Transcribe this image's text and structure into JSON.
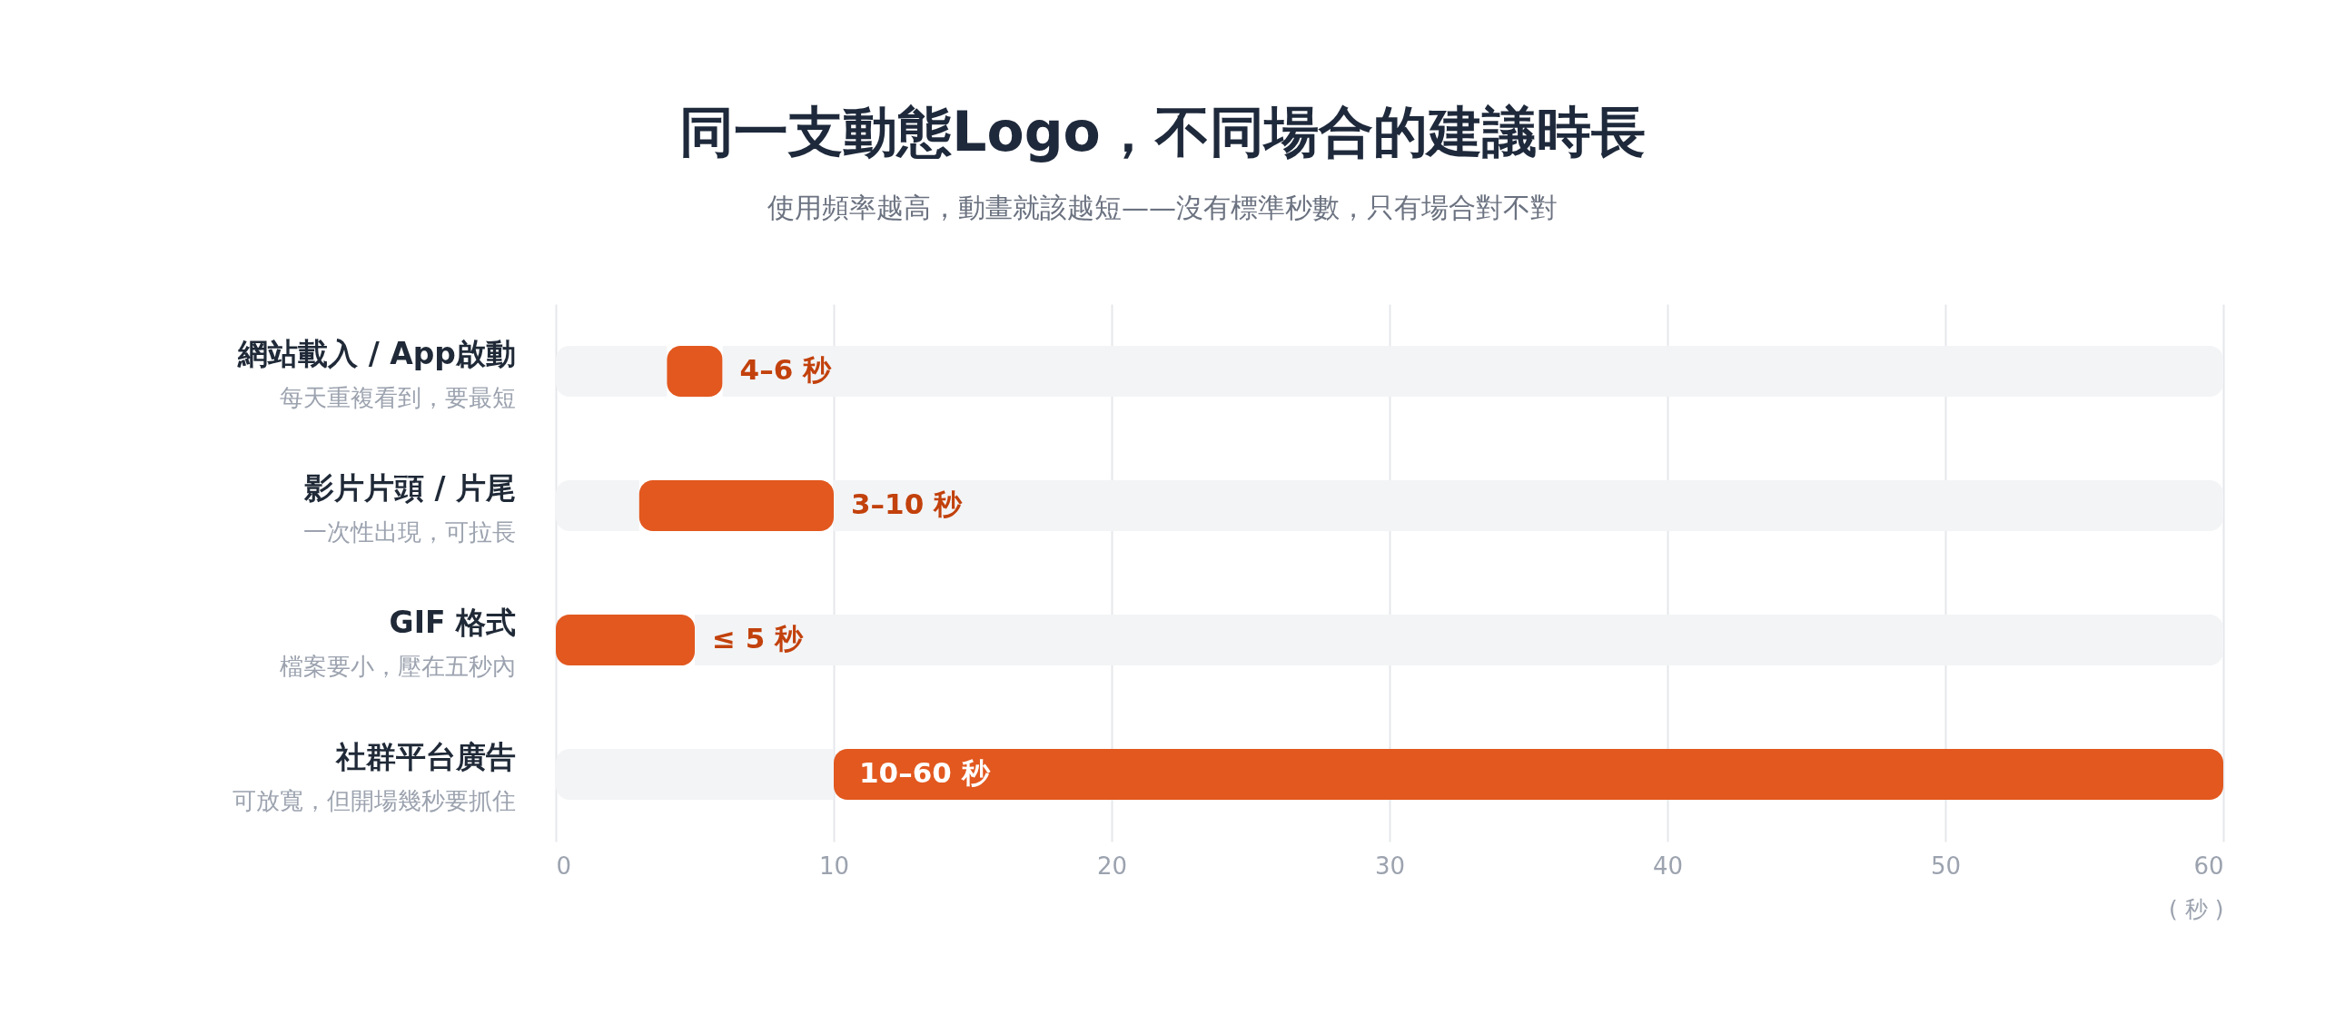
{
  "chart_data": {
    "type": "bar",
    "orientation": "horizontal",
    "stacked": true,
    "title": "同一支動態Logo，不同場合的建議時長",
    "subtitle": "使用頻率越高，動畫就該越短——沒有標準秒數，只有場合對不對",
    "xlabel": "( 秒 )",
    "categories": [
      "網站載入 / App啟動",
      "影片片頭 / 片尾",
      "GIF 格式",
      "社群平台廣告"
    ],
    "annotations": [
      "每天重複看到，要最短",
      "一次性出現，可拉長",
      "檔案要小，壓在五秒內",
      "可放寬，但開場幾秒要抓住"
    ],
    "series": [
      {
        "color": "#f3f4f6",
        "values": [
          4,
          3,
          0,
          10
        ]
      },
      {
        "color": "#e2581f",
        "values": [
          2,
          7,
          5,
          50
        ],
        "value_labels": [
          "4–6 秒",
          "3–10 秒",
          "≤ 5 秒",
          "10–60 秒"
        ]
      },
      {
        "color": "#f3f4f6",
        "values": [
          54,
          50,
          55,
          0
        ]
      }
    ],
    "xlim": [
      0,
      60
    ],
    "xticks": [
      0,
      10,
      20,
      30,
      40,
      50,
      60
    ],
    "grid": "x"
  }
}
